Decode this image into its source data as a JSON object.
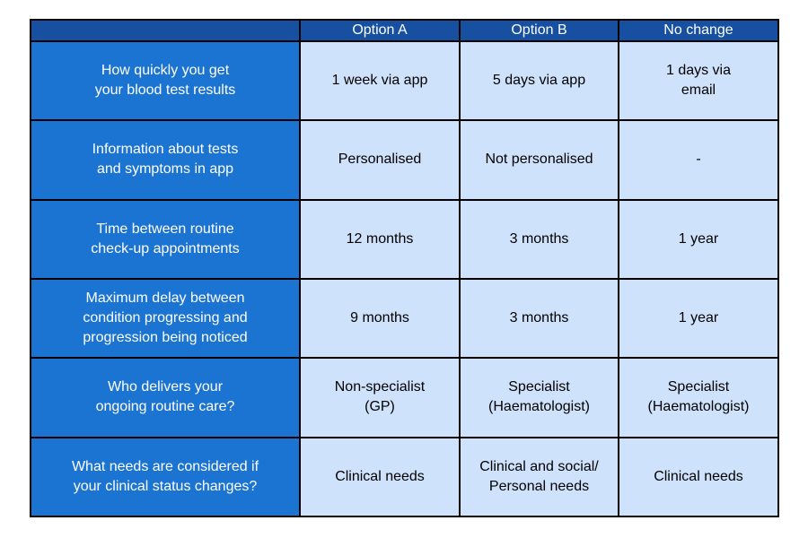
{
  "table": {
    "columns": [
      "",
      "Option A",
      "Option B",
      "No change"
    ],
    "rows": [
      {
        "attribute": [
          "How quickly you get",
          "your blood test results"
        ],
        "cells": [
          [
            "1 week via app"
          ],
          [
            "5 days via app"
          ],
          [
            "1 days via",
            "email"
          ]
        ]
      },
      {
        "attribute": [
          "Information about tests",
          "and symptoms in app"
        ],
        "cells": [
          [
            "Personalised"
          ],
          [
            "Not personalised"
          ],
          [
            "-"
          ]
        ]
      },
      {
        "attribute": [
          "Time between routine",
          "check-up appointments"
        ],
        "cells": [
          [
            "12 months"
          ],
          [
            "3 months"
          ],
          [
            "1 year"
          ]
        ]
      },
      {
        "attribute": [
          "Maximum delay between",
          "condition progressing and",
          "progression being noticed"
        ],
        "cells": [
          [
            "9 months"
          ],
          [
            "3 months"
          ],
          [
            "1 year"
          ]
        ]
      },
      {
        "attribute": [
          "Who delivers your",
          "ongoing routine care?"
        ],
        "cells": [
          [
            "Non-specialist",
            "(GP)"
          ],
          [
            "Specialist",
            "(Haematologist)"
          ],
          [
            "Specialist",
            "(Haematologist)"
          ]
        ]
      },
      {
        "attribute": [
          "What needs are considered if",
          "your clinical status changes?"
        ],
        "cells": [
          [
            "Clinical needs"
          ],
          [
            "Clinical and social/",
            "Personal needs"
          ],
          [
            "Clinical needs"
          ]
        ]
      }
    ]
  },
  "colors": {
    "header_bg": "#1750a0",
    "attribute_bg": "#1b74d2",
    "cell_bg": "#cfe2fb",
    "border": "#000000"
  }
}
